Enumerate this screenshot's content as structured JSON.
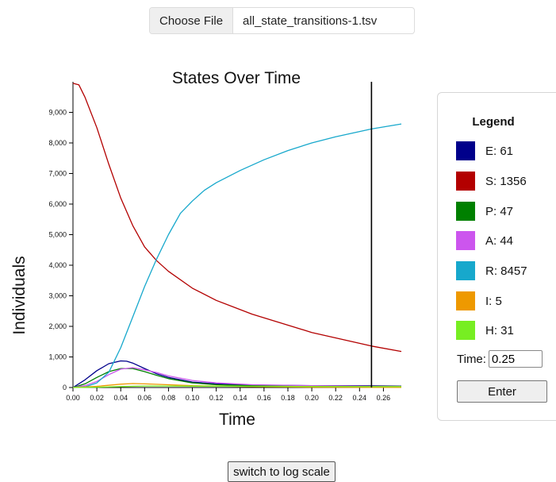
{
  "file_input": {
    "button_label": "Choose File",
    "file_name": "all_state_transitions-1.tsv"
  },
  "legend": {
    "title": "Legend",
    "items": [
      {
        "label": "E: 61",
        "color": "#00008b"
      },
      {
        "label": "S: 1356",
        "color": "#b30000"
      },
      {
        "label": "P: 47",
        "color": "#008000"
      },
      {
        "label": "A: 44",
        "color": "#cc55ee"
      },
      {
        "label": "R: 8457",
        "color": "#17a8cc"
      },
      {
        "label": "I: 5",
        "color": "#ee9900"
      },
      {
        "label": "H: 31",
        "color": "#77ee22"
      }
    ],
    "time_label": "Time:",
    "time_value": "0.25",
    "enter_label": "Enter"
  },
  "log_button_label": "switch to log scale",
  "chart_data": {
    "type": "line",
    "title": "States Over Time",
    "xlabel": "Time",
    "ylabel": "Individuals",
    "xlim": [
      0,
      0.275
    ],
    "ylim": [
      0,
      10000
    ],
    "x_ticks": [
      "0.00",
      "0.02",
      "0.04",
      "0.06",
      "0.08",
      "0.10",
      "0.12",
      "0.14",
      "0.16",
      "0.18",
      "0.20",
      "0.22",
      "0.24",
      "0.26"
    ],
    "y_ticks": [
      "0",
      "1,000",
      "2,000",
      "3,000",
      "4,000",
      "5,000",
      "6,000",
      "7,000",
      "8,000",
      "9,000"
    ],
    "marker_time": 0.25,
    "grid": false,
    "series": [
      {
        "name": "E",
        "color": "#00008b",
        "x": [
          0,
          0.01,
          0.02,
          0.03,
          0.04,
          0.045,
          0.05,
          0.06,
          0.07,
          0.08,
          0.1,
          0.12,
          0.15,
          0.2,
          0.25,
          0.275
        ],
        "y": [
          0,
          250,
          550,
          780,
          870,
          860,
          800,
          620,
          450,
          330,
          180,
          120,
          80,
          60,
          61,
          50
        ]
      },
      {
        "name": "S",
        "color": "#b30000",
        "x": [
          0,
          0.005,
          0.01,
          0.02,
          0.03,
          0.04,
          0.05,
          0.06,
          0.07,
          0.08,
          0.1,
          0.12,
          0.15,
          0.2,
          0.25,
          0.275
        ],
        "y": [
          9950,
          9900,
          9500,
          8500,
          7300,
          6200,
          5300,
          4600,
          4150,
          3800,
          3250,
          2850,
          2400,
          1800,
          1356,
          1180
        ]
      },
      {
        "name": "P",
        "color": "#008000",
        "x": [
          0,
          0.01,
          0.02,
          0.03,
          0.04,
          0.05,
          0.06,
          0.07,
          0.08,
          0.1,
          0.12,
          0.15,
          0.2,
          0.25,
          0.275
        ],
        "y": [
          0,
          120,
          330,
          520,
          620,
          620,
          520,
          400,
          290,
          150,
          90,
          60,
          50,
          47,
          40
        ]
      },
      {
        "name": "A",
        "color": "#cc55ee",
        "x": [
          0,
          0.01,
          0.02,
          0.03,
          0.04,
          0.05,
          0.06,
          0.07,
          0.08,
          0.1,
          0.12,
          0.15,
          0.2,
          0.25,
          0.275
        ],
        "y": [
          0,
          60,
          200,
          420,
          600,
          650,
          580,
          490,
          380,
          230,
          150,
          90,
          60,
          44,
          40
        ]
      },
      {
        "name": "R",
        "color": "#17a8cc",
        "x": [
          0,
          0.01,
          0.02,
          0.03,
          0.04,
          0.05,
          0.06,
          0.07,
          0.08,
          0.09,
          0.1,
          0.11,
          0.12,
          0.14,
          0.16,
          0.18,
          0.2,
          0.22,
          0.25,
          0.275
        ],
        "y": [
          0,
          20,
          150,
          500,
          1300,
          2300,
          3300,
          4200,
          5000,
          5700,
          6100,
          6450,
          6700,
          7100,
          7450,
          7750,
          8000,
          8200,
          8457,
          8620
        ]
      },
      {
        "name": "I",
        "color": "#ee9900",
        "x": [
          0,
          0.02,
          0.04,
          0.05,
          0.06,
          0.08,
          0.1,
          0.15,
          0.2,
          0.25,
          0.275
        ],
        "y": [
          0,
          40,
          110,
          130,
          120,
          90,
          60,
          30,
          10,
          5,
          5
        ]
      },
      {
        "name": "H",
        "color": "#77ee22",
        "x": [
          0,
          0.02,
          0.04,
          0.06,
          0.08,
          0.1,
          0.15,
          0.2,
          0.25,
          0.275
        ],
        "y": [
          0,
          10,
          30,
          50,
          50,
          45,
          40,
          35,
          31,
          30
        ]
      }
    ]
  }
}
